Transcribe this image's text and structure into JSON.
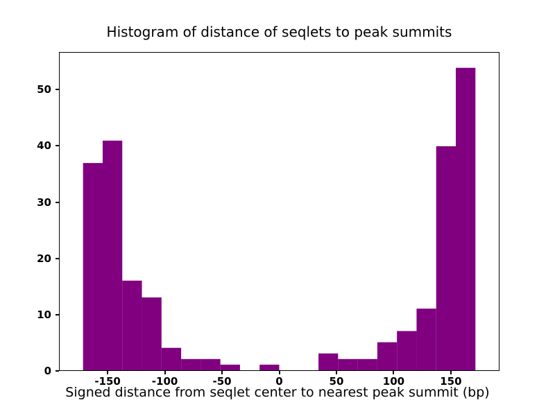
{
  "chart_data": {
    "type": "bar",
    "subtype": "histogram",
    "title": "Histogram of distance of seqlets to peak summits",
    "xlabel": "Signed distance from seqlet center to nearest peak summit (bp)",
    "ylabel": "",
    "bar_color": "#800080",
    "background_color": "#ffffff",
    "axis_color": "#000000",
    "grid": false,
    "legend": false,
    "bin_edges": [
      -172,
      -154.8,
      -137.6,
      -120.4,
      -103.2,
      -86,
      -68.8,
      -51.6,
      -34.4,
      -17.2,
      0,
      17.2,
      34.4,
      51.6,
      68.8,
      86,
      103.2,
      120.4,
      137.6,
      154.8,
      172
    ],
    "counts": [
      37,
      41,
      16,
      13,
      4,
      2,
      2,
      1,
      0,
      1,
      0,
      0,
      3,
      2,
      2,
      5,
      7,
      11,
      40,
      54
    ],
    "xlim": [
      -192.5,
      192.5
    ],
    "ylim": [
      0,
      56.7
    ],
    "xticks": [
      -150,
      -100,
      -50,
      0,
      50,
      100,
      150
    ],
    "yticks": [
      0,
      10,
      20,
      30,
      40,
      50
    ]
  }
}
